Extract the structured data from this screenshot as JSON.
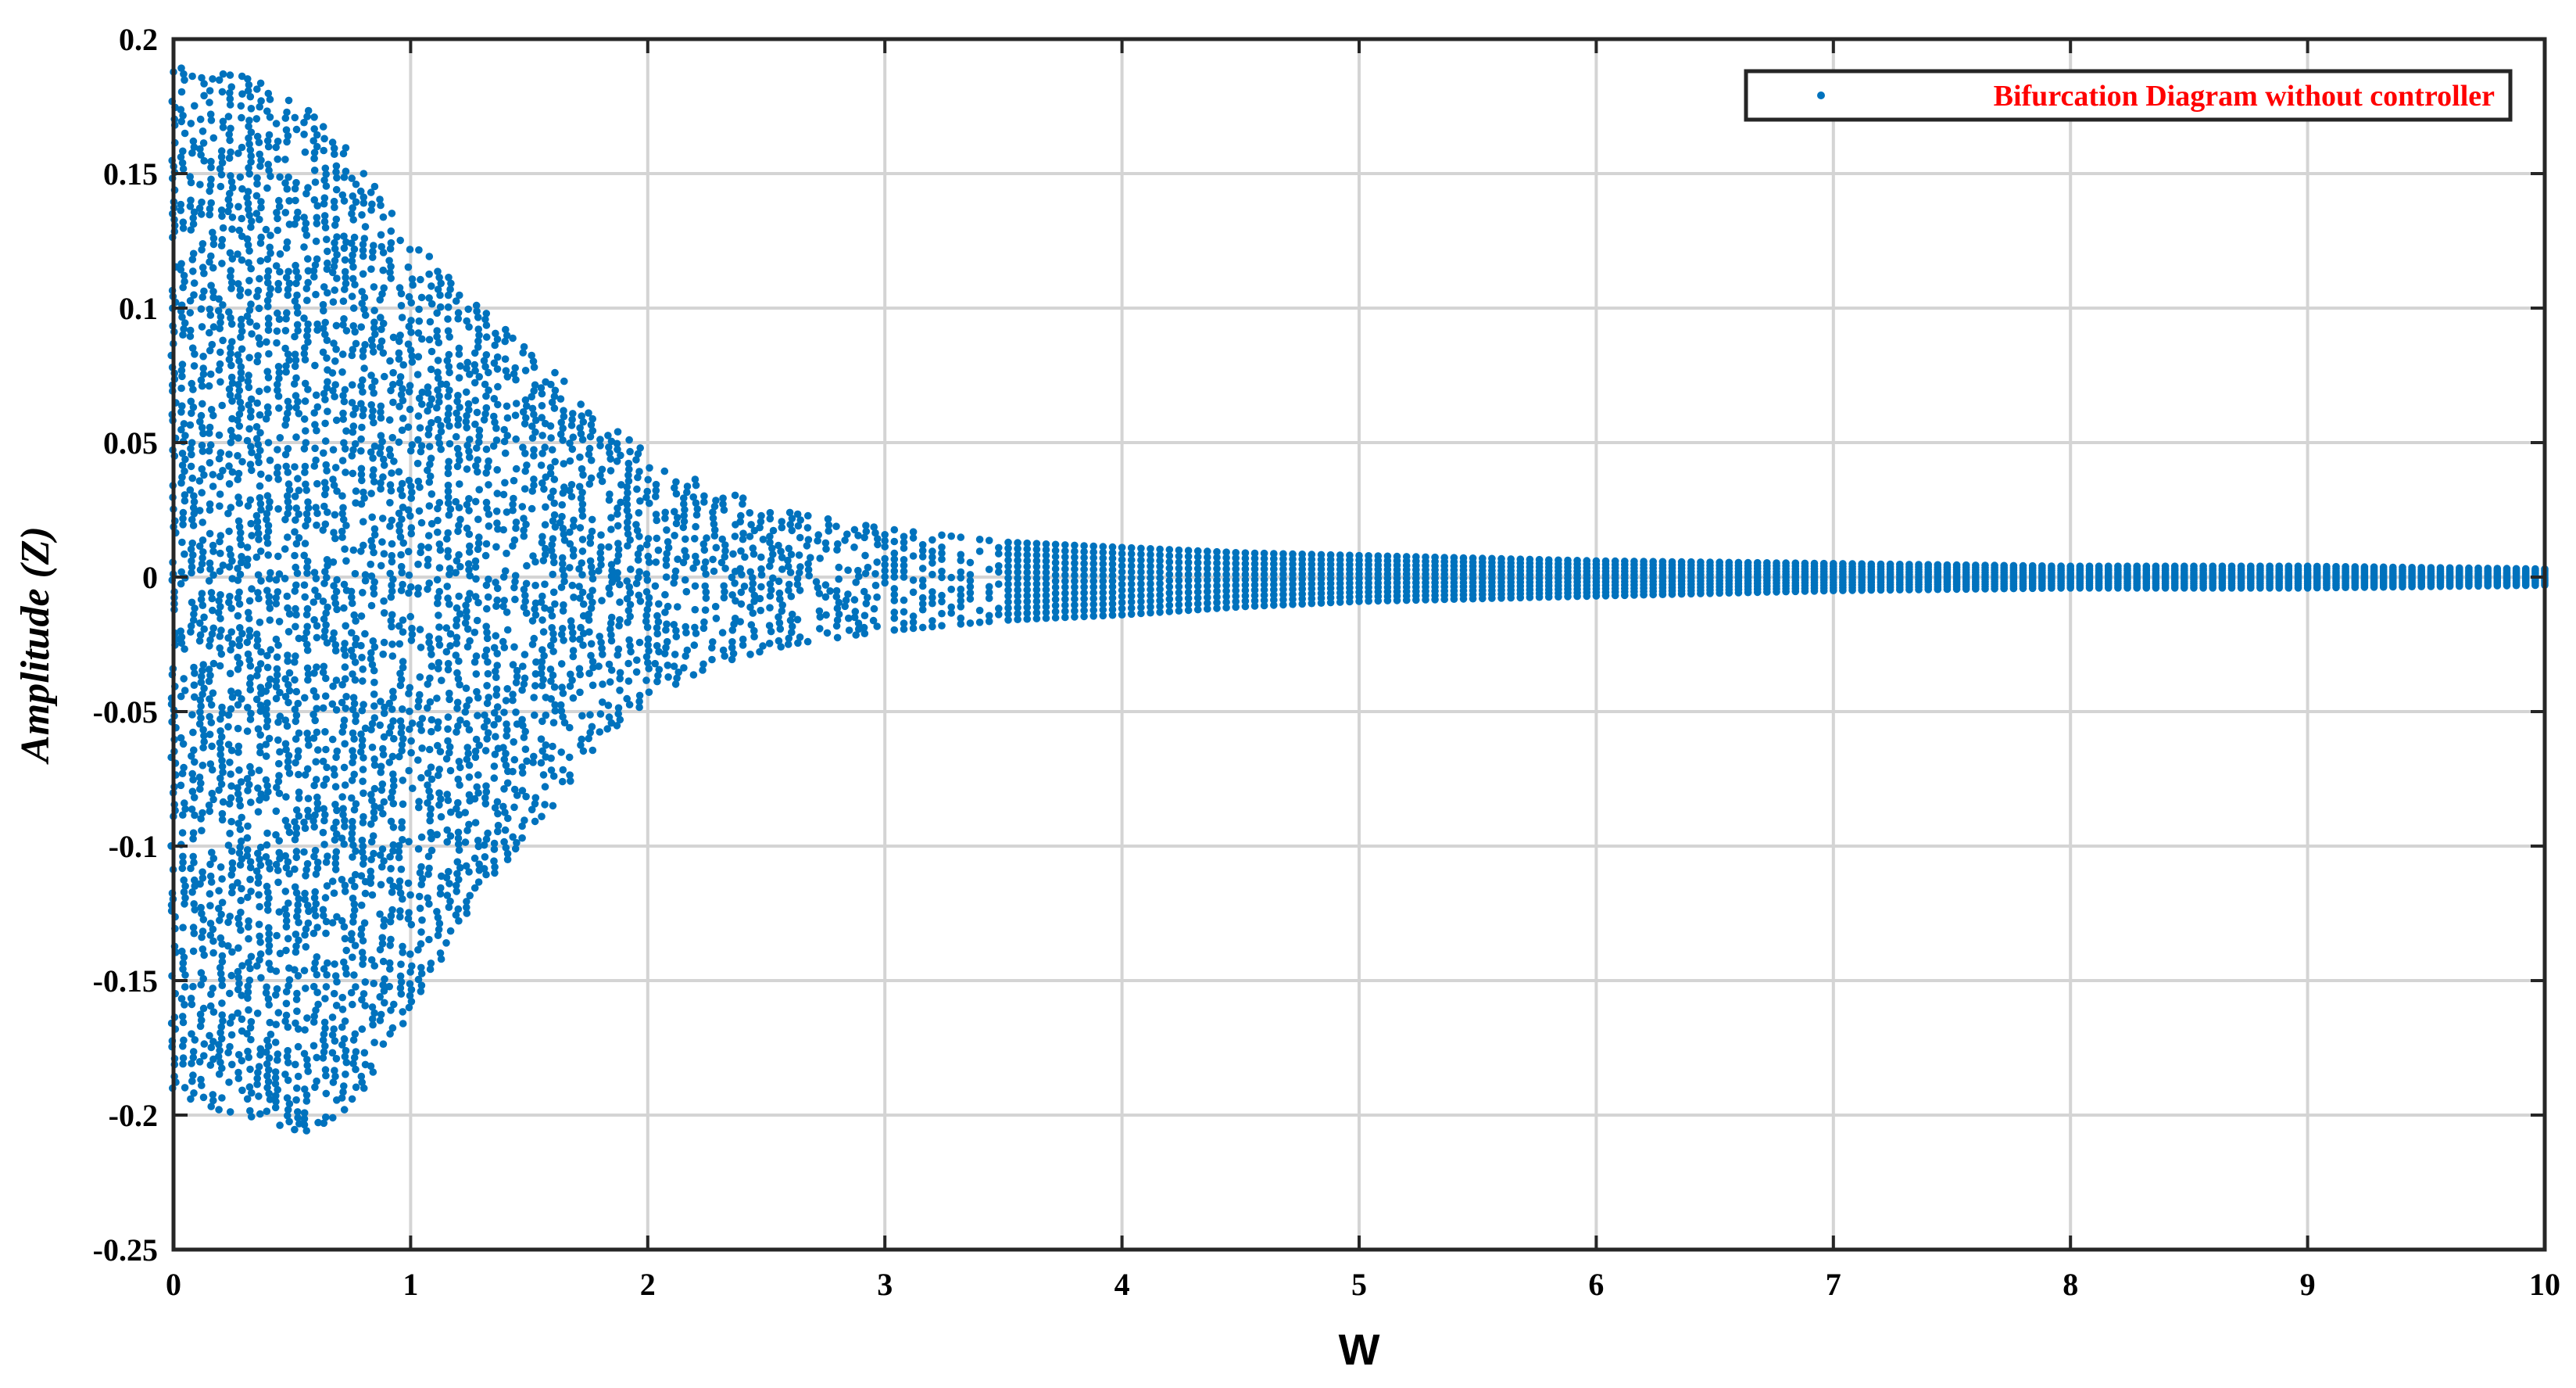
{
  "chart_data": {
    "type": "scatter",
    "title": "",
    "xlabel": "W",
    "ylabel": "Amplitude (Z)",
    "xlim": [
      0,
      10
    ],
    "ylim": [
      -0.25,
      0.2
    ],
    "xticks": [
      "0",
      "1",
      "2",
      "3",
      "4",
      "5",
      "6",
      "7",
      "8",
      "9",
      "10"
    ],
    "yticks": [
      "0.2",
      "0.15",
      "0.1",
      "0.05",
      "0",
      "-0.05",
      "-0.1",
      "-0.15",
      "-0.2",
      "-0.25"
    ],
    "grid": true,
    "legend_position": "top-right",
    "series": [
      {
        "name": "Bifurcation Diagram without controller",
        "color": "#0072BD",
        "marker": "dot",
        "envelope": {
          "x": [
            0.0,
            0.1,
            0.2,
            0.3,
            0.4,
            0.5,
            0.55,
            0.6,
            0.7,
            0.8,
            0.9,
            1.0,
            1.1,
            1.2,
            1.4,
            1.6,
            1.8,
            2.0,
            2.3,
            2.6,
            3.0,
            3.5,
            4.0,
            4.5,
            5.0,
            6.0,
            7.0,
            8.0,
            9.0,
            10.0
          ],
          "upper": [
            0.19,
            0.188,
            0.187,
            0.186,
            0.182,
            0.176,
            0.174,
            0.171,
            0.162,
            0.15,
            0.138,
            0.124,
            0.118,
            0.107,
            0.092,
            0.076,
            0.06,
            0.045,
            0.032,
            0.024,
            0.018,
            0.013,
            0.011,
            0.009,
            0.008,
            0.006,
            0.005,
            0.004,
            0.004,
            0.003
          ],
          "lower": [
            -0.19,
            -0.195,
            -0.198,
            -0.2,
            -0.203,
            -0.205,
            -0.206,
            -0.205,
            -0.2,
            -0.19,
            -0.175,
            -0.16,
            -0.145,
            -0.13,
            -0.105,
            -0.085,
            -0.062,
            -0.045,
            -0.032,
            -0.025,
            -0.02,
            -0.016,
            -0.014,
            -0.011,
            -0.009,
            -0.007,
            -0.005,
            -0.004,
            -0.004,
            -0.003
          ]
        }
      }
    ]
  }
}
